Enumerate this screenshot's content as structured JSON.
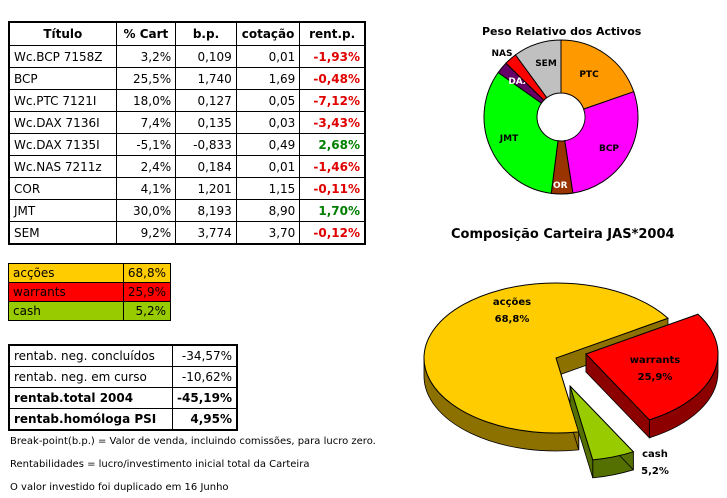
{
  "holdings": {
    "headers": [
      "Título",
      "% Cart",
      "b.p.",
      "cotação",
      "rent.p."
    ],
    "rows": [
      {
        "titulo": "Wc.BCP 7158Z",
        "cart": "3,2%",
        "bp": "0,109",
        "cotacao": "0,01",
        "rent": "-1,93%",
        "sign": "neg"
      },
      {
        "titulo": "BCP",
        "cart": "25,5%",
        "bp": "1,740",
        "cotacao": "1,69",
        "rent": "-0,48%",
        "sign": "neg"
      },
      {
        "titulo": "Wc.PTC 7121I",
        "cart": "18,0%",
        "bp": "0,127",
        "cotacao": "0,05",
        "rent": "-7,12%",
        "sign": "neg"
      },
      {
        "titulo": "Wc.DAX 7136I",
        "cart": "7,4%",
        "bp": "0,135",
        "cotacao": "0,03",
        "rent": "-3,43%",
        "sign": "neg"
      },
      {
        "titulo": "Wc.DAX 7135I",
        "cart": "-5,1%",
        "bp": "-0,833",
        "cotacao": "0,49",
        "rent": "2,68%",
        "sign": "pos"
      },
      {
        "titulo": "Wc.NAS 7211z",
        "cart": "2,4%",
        "bp": "0,184",
        "cotacao": "0,01",
        "rent": "-1,46%",
        "sign": "neg"
      },
      {
        "titulo": "COR",
        "cart": "4,1%",
        "bp": "1,201",
        "cotacao": "1,15",
        "rent": "-0,11%",
        "sign": "neg"
      },
      {
        "titulo": "JMT",
        "cart": "30,0%",
        "bp": "8,193",
        "cotacao": "8,90",
        "rent": "1,70%",
        "sign": "pos"
      },
      {
        "titulo": "SEM",
        "cart": "9,2%",
        "bp": "3,774",
        "cotacao": "3,70",
        "rent": "-0,12%",
        "sign": "neg"
      }
    ]
  },
  "allocation": [
    {
      "label": "acções",
      "value": "68,8%",
      "color": "#ffcc00"
    },
    {
      "label": "warrants",
      "value": "25,9%",
      "color": "#ff0000"
    },
    {
      "label": "cash",
      "value": "5,2%",
      "color": "#99cc00"
    }
  ],
  "returns": [
    {
      "label": "rentab. neg. concluídos",
      "value": "-34,57%",
      "bold": false
    },
    {
      "label": "rentab. neg. em curso",
      "value": "-10,62%",
      "bold": false
    },
    {
      "label": "rentab.total 2004",
      "value": "-45,19%",
      "bold": true
    },
    {
      "label": "rentab.homóloga PSI",
      "value": "4,95%",
      "bold": true
    }
  ],
  "notes": [
    "Break-point(b.p.) = Valor de venda, incluindo comissões, para lucro zero.",
    "Rentabilidades = lucro/investimento inicial total da Carteira",
    "O valor investido foi duplicado em 16 Junho"
  ],
  "chart_data": [
    {
      "type": "pie",
      "variant": "doughnut",
      "title": "Peso Relativo dos Activos",
      "categories": [
        "PTC",
        "BCP",
        "COR",
        "JMT",
        "DAX",
        "NAS",
        "SEM"
      ],
      "values": [
        18.0,
        25.5,
        4.1,
        30.0,
        2.3,
        2.4,
        9.2
      ],
      "colors": [
        "#ff9900",
        "#ff00ff",
        "#993300",
        "#00ff00",
        "#660066",
        "#ff0000",
        "#c0c0c0"
      ]
    },
    {
      "type": "pie",
      "variant": "3d-exploded",
      "title": "Composição Carteira JAS*2004",
      "categories": [
        "acções",
        "warrants",
        "cash"
      ],
      "values": [
        68.8,
        25.9,
        5.2
      ],
      "data_labels": [
        "68,8%",
        "25,9%",
        "5,2%"
      ],
      "colors": [
        "#ffcc00",
        "#ff0000",
        "#99cc00"
      ]
    }
  ]
}
